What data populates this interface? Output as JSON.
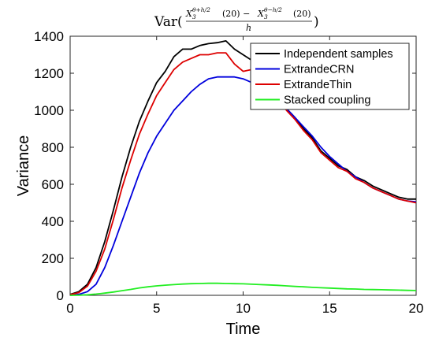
{
  "chart_data": {
    "type": "line",
    "title": {
      "prefix": "Var(",
      "numerator_a": "X",
      "numerator_a_sup": "θ+h/2",
      "numerator_a_sub": "3",
      "numerator_a_arg": "(20) − ",
      "numerator_b": "X",
      "numerator_b_sup": "θ−h/2",
      "numerator_b_sub": "3",
      "numerator_b_arg": "(20)",
      "denominator": "h",
      "suffix": ")"
    },
    "xlabel": "Time",
    "ylabel": "Variance",
    "xlim": [
      0,
      20
    ],
    "ylim": [
      0,
      1400
    ],
    "xticks": [
      0,
      5,
      10,
      15,
      20
    ],
    "yticks": [
      0,
      200,
      400,
      600,
      800,
      1000,
      1200,
      1400
    ],
    "legend_position": "top-right",
    "grid": false,
    "series": [
      {
        "name": "Independent samples",
        "color": "#000000",
        "x": [
          0,
          0.5,
          1,
          1.5,
          2,
          2.5,
          3,
          3.5,
          4,
          4.5,
          5,
          5.5,
          6,
          6.5,
          7,
          7.5,
          8,
          8.5,
          9,
          9.5,
          10,
          10.5,
          11,
          11.5,
          12,
          12.5,
          13,
          13.5,
          14,
          14.5,
          15,
          15.5,
          16,
          16.5,
          17,
          17.5,
          18,
          18.5,
          19,
          19.5,
          20
        ],
        "y": [
          5,
          20,
          60,
          150,
          290,
          460,
          640,
          800,
          940,
          1050,
          1150,
          1210,
          1290,
          1330,
          1330,
          1350,
          1360,
          1365,
          1375,
          1330,
          1300,
          1270,
          1230,
          1150,
          1080,
          1010,
          960,
          900,
          850,
          780,
          740,
          700,
          680,
          640,
          620,
          590,
          570,
          550,
          530,
          520,
          520
        ]
      },
      {
        "name": "ExtrandeCRN",
        "color": "#0000dd",
        "x": [
          0,
          0.5,
          1,
          1.5,
          2,
          2.5,
          3,
          3.5,
          4,
          4.5,
          5,
          5.5,
          6,
          6.5,
          7,
          7.5,
          8,
          8.5,
          9,
          9.5,
          10,
          10.5,
          11,
          11.5,
          12,
          12.5,
          13,
          13.5,
          14,
          14.5,
          15,
          15.5,
          16,
          16.5,
          17,
          17.5,
          18,
          18.5,
          19,
          19.5,
          20
        ],
        "y": [
          0,
          5,
          20,
          60,
          150,
          270,
          400,
          530,
          660,
          770,
          860,
          930,
          1000,
          1050,
          1100,
          1140,
          1170,
          1180,
          1180,
          1180,
          1170,
          1150,
          1120,
          1090,
          1060,
          1010,
          960,
          910,
          860,
          800,
          750,
          710,
          670,
          640,
          610,
          580,
          560,
          540,
          520,
          510,
          505
        ]
      },
      {
        "name": "ExtrandeThin",
        "color": "#dd0000",
        "x": [
          0,
          0.5,
          1,
          1.5,
          2,
          2.5,
          3,
          3.5,
          4,
          4.5,
          5,
          5.5,
          6,
          6.5,
          7,
          7.5,
          8,
          8.5,
          9,
          9.5,
          10,
          10.5,
          11,
          11.5,
          12,
          12.5,
          13,
          13.5,
          14,
          14.5,
          15,
          15.5,
          16,
          16.5,
          17,
          17.5,
          18,
          18.5,
          19,
          19.5,
          20
        ],
        "y": [
          3,
          15,
          50,
          130,
          250,
          410,
          580,
          730,
          870,
          980,
          1080,
          1150,
          1220,
          1260,
          1280,
          1300,
          1300,
          1310,
          1310,
          1250,
          1210,
          1220,
          1180,
          1130,
          1070,
          1000,
          950,
          890,
          840,
          770,
          730,
          690,
          670,
          630,
          610,
          580,
          560,
          540,
          520,
          510,
          500
        ]
      },
      {
        "name": "Stacked coupling",
        "color": "#22ee22",
        "x": [
          0,
          0.5,
          1,
          1.5,
          2,
          2.5,
          3,
          3.5,
          4,
          4.5,
          5,
          5.5,
          6,
          6.5,
          7,
          7.5,
          8,
          8.5,
          9,
          9.5,
          10,
          10.5,
          11,
          11.5,
          12,
          12.5,
          13,
          13.5,
          14,
          14.5,
          15,
          15.5,
          16,
          16.5,
          17,
          17.5,
          18,
          18.5,
          19,
          19.5,
          20
        ],
        "y": [
          0,
          1,
          3,
          7,
          12,
          18,
          25,
          32,
          40,
          46,
          51,
          55,
          58,
          61,
          63,
          64,
          65,
          65,
          64,
          63,
          62,
          60,
          58,
          56,
          54,
          51,
          48,
          46,
          43,
          41,
          39,
          37,
          35,
          34,
          32,
          31,
          30,
          29,
          28,
          27,
          26
        ]
      }
    ]
  }
}
